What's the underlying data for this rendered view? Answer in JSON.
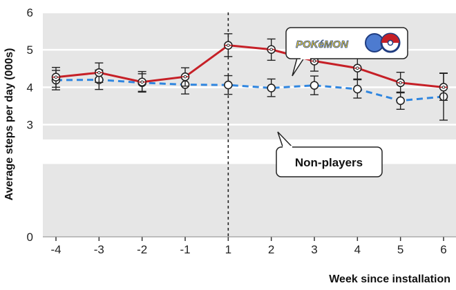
{
  "chart_data": {
    "type": "line",
    "xlabel": "Week since installation",
    "ylabel": "Average steps per day (000s)",
    "x_ticks": [
      "-4",
      "-3",
      "-2",
      "-1",
      "1",
      "2",
      "3",
      "4",
      "5",
      "6"
    ],
    "y_ticks": [
      "0",
      "3",
      "4",
      "5",
      "6"
    ],
    "ylim": [
      0,
      6
    ],
    "y_axis_break": [
      0,
      2.6
    ],
    "vertical_reference_line_at": "1",
    "series": [
      {
        "name": "Pokémon GO players",
        "label_style": "logo",
        "color": "#c62027",
        "line_style": "solid",
        "values": [
          4.27,
          4.39,
          4.14,
          4.28,
          5.12,
          5.01,
          4.7,
          4.51,
          4.12,
          4.0
        ],
        "ci_low": [
          4.0,
          4.13,
          3.87,
          4.03,
          4.82,
          4.72,
          4.43,
          4.22,
          3.85,
          3.65
        ],
        "ci_high": [
          4.53,
          4.65,
          4.42,
          4.52,
          5.43,
          5.29,
          4.97,
          4.79,
          4.4,
          4.37
        ]
      },
      {
        "name": "Non-players",
        "label_style": "callout",
        "color": "#2f86e0",
        "line_style": "dashed",
        "values": [
          4.19,
          4.2,
          4.12,
          4.07,
          4.06,
          3.98,
          4.05,
          3.95,
          3.64,
          3.75
        ],
        "ci_low": [
          3.93,
          3.94,
          3.89,
          3.82,
          3.81,
          3.75,
          3.8,
          3.71,
          3.41,
          3.12
        ],
        "ci_high": [
          4.45,
          4.46,
          4.36,
          4.31,
          4.31,
          4.22,
          4.3,
          4.2,
          3.87,
          4.38
        ]
      }
    ],
    "grid": true,
    "background": "#e6e6e6"
  }
}
